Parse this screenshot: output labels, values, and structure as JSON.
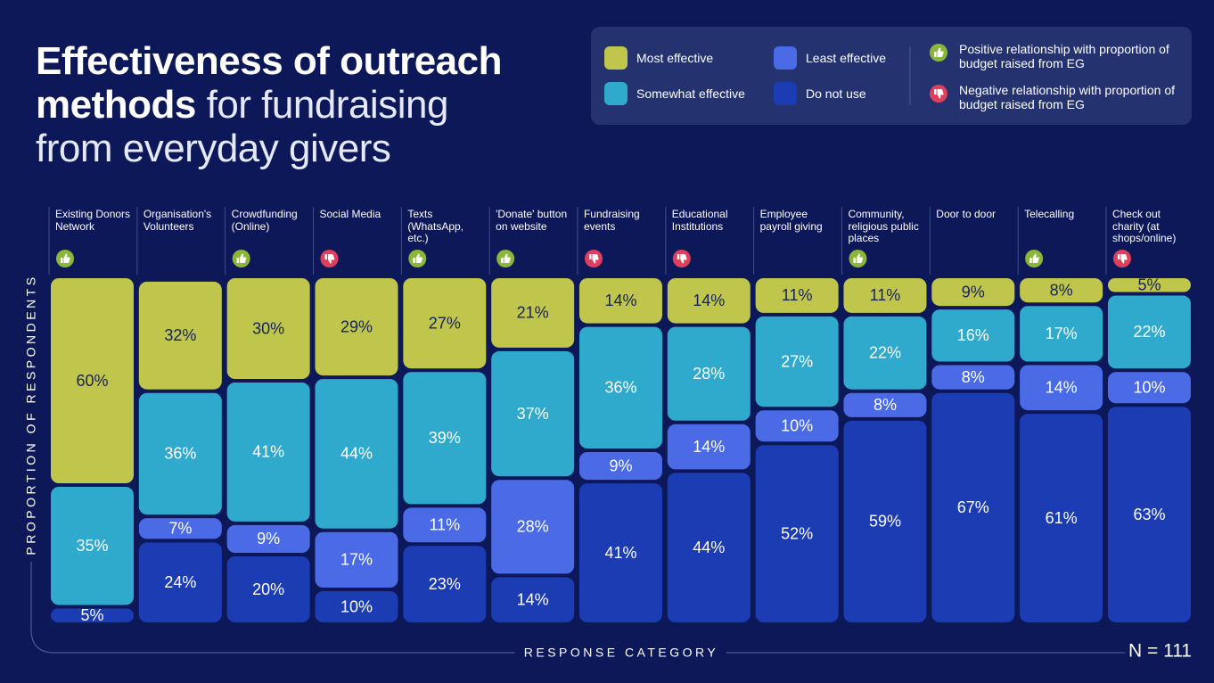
{
  "chart_data": {
    "type": "stacked_bar",
    "title": "Effectiveness of outreach methods",
    "subtitle": "for fundraising from everyday givers",
    "y_label": "PROPORTION OF RESPONDENTS",
    "x_label": "RESPONSE CATEGORY",
    "note": "N = 111",
    "categories": [
      "Existing Donors Network",
      "Organisation's Volunteers",
      "Crowdfunding (Online)",
      "Social Media",
      "Texts (WhatsApp, etc.)",
      "'Donate' button on website",
      "Fundraising events",
      "Educational Institutions",
      "Employee payroll giving",
      "Community, religious public places",
      "Door to door",
      "Telecalling",
      "Check out charity (at shops/online)"
    ],
    "relationships": [
      "positive",
      null,
      "positive",
      "negative",
      "positive",
      "positive",
      "negative",
      "negative",
      null,
      "positive",
      null,
      "positive",
      "negative"
    ],
    "relationship_legend": {
      "positive": {
        "label": "Positive relationship with proportion of budget raised from EG",
        "color": "#8bb63a"
      },
      "negative": {
        "label": "Negative relationship with proportion of budget raised from EG",
        "color": "#de3f5c"
      }
    },
    "series": [
      {
        "name": "Most effective",
        "color": "#bfc64b",
        "text_color": "#15225a",
        "values": [
          60,
          32,
          30,
          29,
          27,
          21,
          14,
          14,
          11,
          11,
          9,
          8,
          5
        ],
        "value_labels": [
          "60%",
          "32%",
          "30%",
          "29%",
          "27%",
          "21%",
          "14%",
          "14%",
          "11%",
          "11%",
          "9%",
          "8%",
          "5%"
        ]
      },
      {
        "name": "Somewhat effective",
        "color": "#2fa9cc",
        "text_color": "#ffffff",
        "values": [
          35,
          36,
          41,
          44,
          39,
          37,
          36,
          28,
          27,
          22,
          16,
          17,
          22
        ],
        "value_labels": [
          "35%",
          "36%",
          "41%",
          "44%",
          "39%",
          "37%",
          "36%",
          "28%",
          "27%",
          "22%",
          "16%",
          "17%",
          "22%"
        ]
      },
      {
        "name": "Least effective",
        "color": "#4a6ae6",
        "text_color": "#ffffff",
        "values": [
          0,
          7,
          9,
          17,
          11,
          28,
          9,
          14,
          10,
          8,
          8,
          14,
          10
        ],
        "value_labels": [
          null,
          "7%",
          "9%",
          "17%",
          "11%",
          "28%",
          "9%",
          "14%",
          "10%",
          "8%",
          "8%",
          "14%",
          "10%"
        ]
      },
      {
        "name": "Do not use",
        "color": "#1c3cb4",
        "text_color": "#ffffff",
        "values": [
          5,
          24,
          20,
          10,
          23,
          14,
          41,
          44,
          52,
          59,
          67,
          61,
          63
        ],
        "value_labels": [
          "5%",
          "24%",
          "20%",
          "10%",
          "23%",
          "14%",
          "41%",
          "44%",
          "52%",
          "59%",
          "67%",
          "61%",
          "63%"
        ]
      }
    ],
    "ylim": [
      0,
      100
    ]
  }
}
